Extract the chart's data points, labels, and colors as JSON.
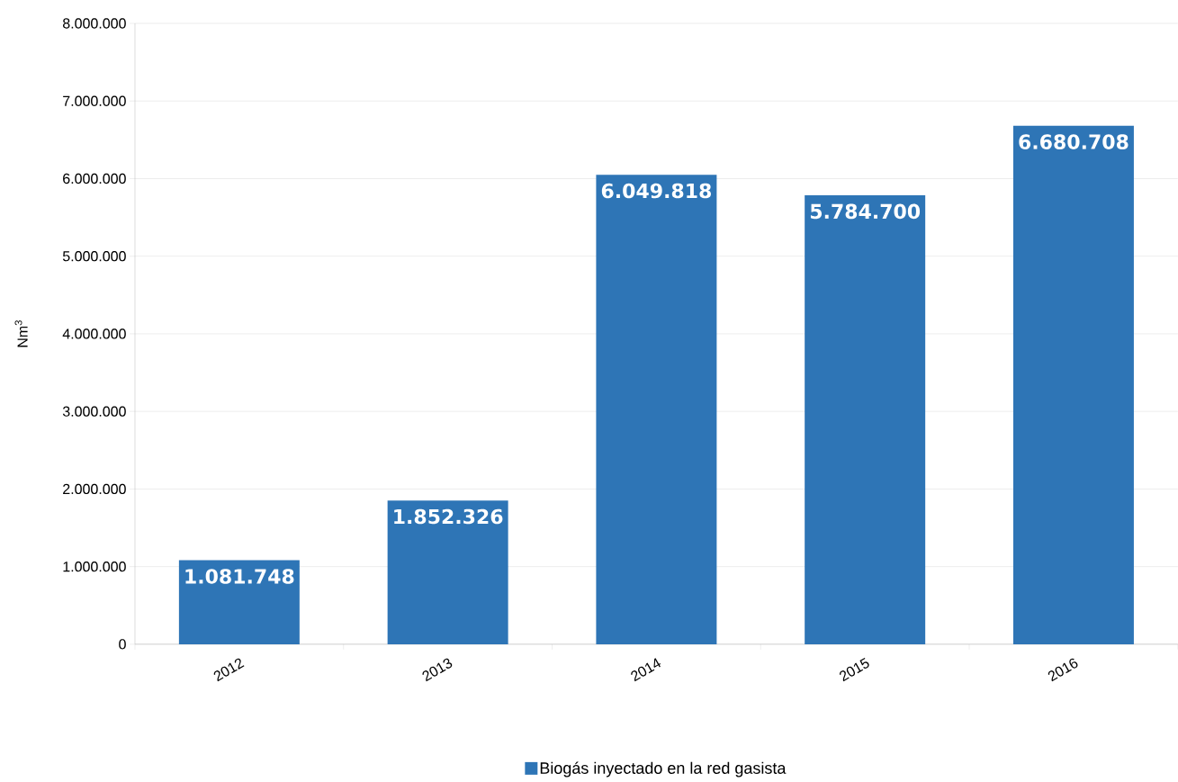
{
  "chart_data": {
    "type": "bar",
    "ylabel": "Nm$^{3}$",
    "categories": [
      "2012",
      "2013",
      "2014",
      "2015",
      "2016"
    ],
    "series": [
      {
        "name": "Biogás inyectado en la red gasista",
        "color": "#2e75b6",
        "values": [
          1081748,
          1852326,
          6049818,
          5784700,
          6680708
        ],
        "value_labels": [
          "1.081.748",
          "1.852.326",
          "6.049.818",
          "5.784.700",
          "6.680.708"
        ]
      }
    ],
    "ylim": [
      0,
      8000000
    ],
    "yticks": [
      {
        "value": 0,
        "label": "0"
      },
      {
        "value": 1000000,
        "label": "1.000.000"
      },
      {
        "value": 2000000,
        "label": "2.000.000"
      },
      {
        "value": 3000000,
        "label": "3.000.000"
      },
      {
        "value": 4000000,
        "label": "4.000.000"
      },
      {
        "value": 5000000,
        "label": "5.000.000"
      },
      {
        "value": 6000000,
        "label": "6.000.000"
      },
      {
        "value": 7000000,
        "label": "7.000.000"
      },
      {
        "value": 8000000,
        "label": "8.000.000"
      }
    ],
    "grid": "y",
    "legend": "bottom"
  }
}
